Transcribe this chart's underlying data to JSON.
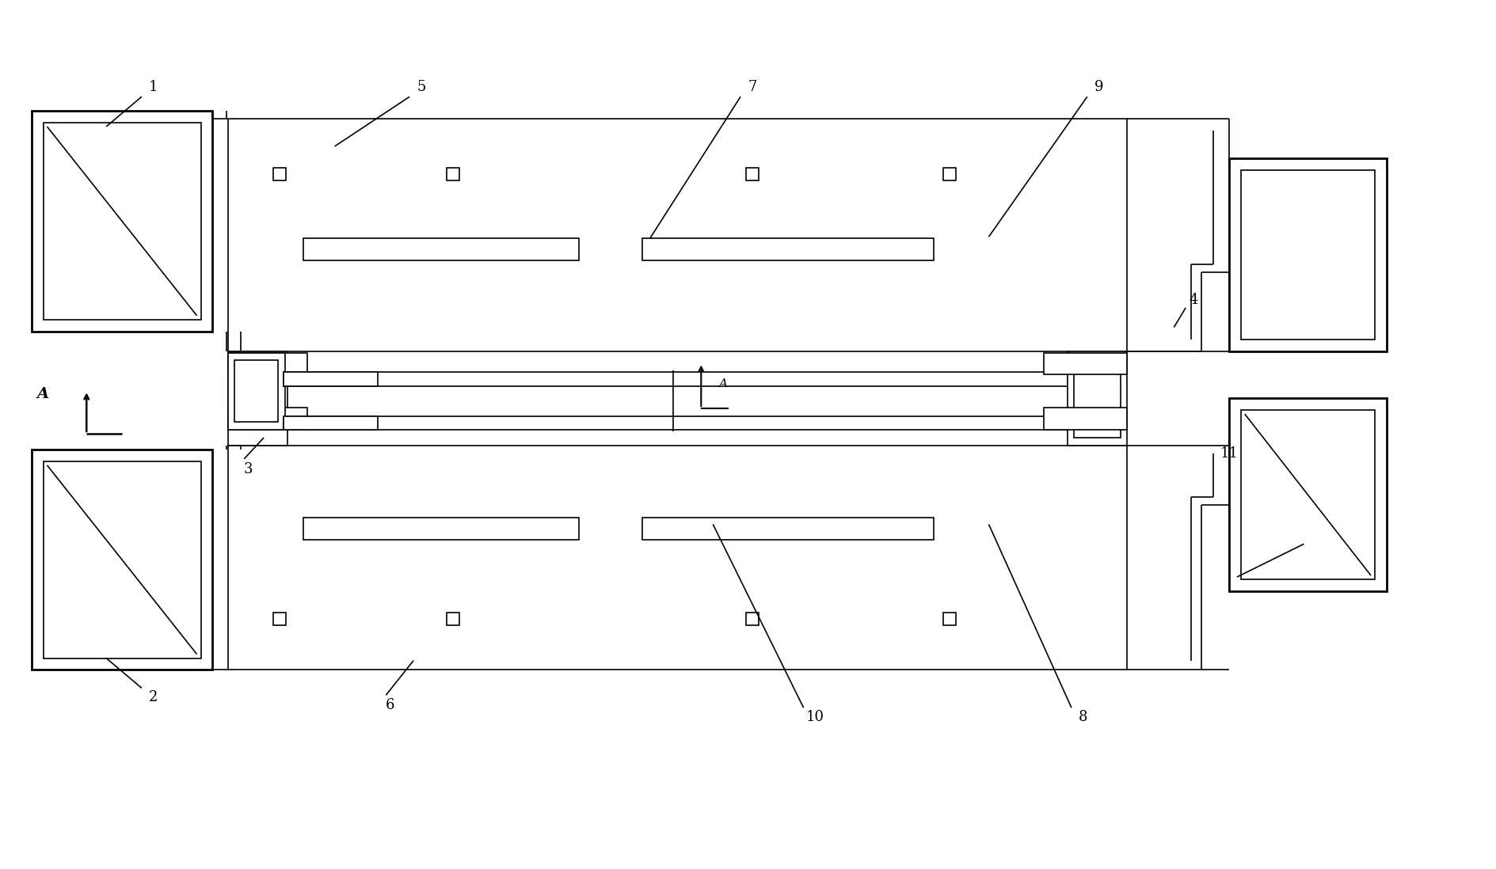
{
  "bg_color": "#ffffff",
  "lc": "#000000",
  "lw": 1.2,
  "tlw": 2.0,
  "fig_w": 18.9,
  "fig_h": 10.98,
  "xl": 0,
  "xr": 18.9,
  "yb": 0,
  "yt": 10.98
}
